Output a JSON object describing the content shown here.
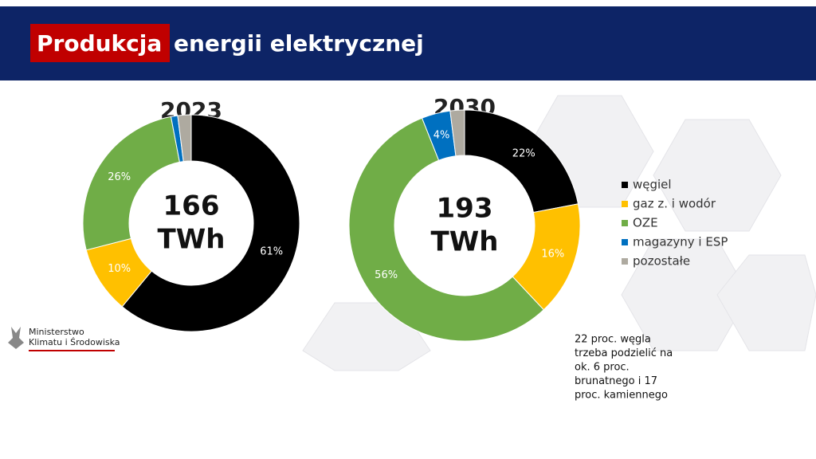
{
  "header": {
    "title_highlight": "Produkcja",
    "title_rest": "energii elektrycznej"
  },
  "legend": [
    {
      "name": "węgiel",
      "color": "#000000"
    },
    {
      "name": "gaz z. i wodór",
      "color": "#ffc000"
    },
    {
      "name": "OZE",
      "color": "#70ad47"
    },
    {
      "name": "magazyny i ESP",
      "color": "#0070c0"
    },
    {
      "name": "pozostałe",
      "color": "#aeaaa0"
    }
  ],
  "chart_data": [
    {
      "type": "donut",
      "title": "2023",
      "center_text": [
        "166",
        "TWh"
      ],
      "values": [
        61,
        10,
        26,
        1,
        2
      ],
      "value_labels": [
        "61%",
        "10%",
        "26%",
        null,
        null
      ]
    },
    {
      "type": "donut",
      "title": "2030",
      "center_text": [
        "193",
        "TWh"
      ],
      "values": [
        22,
        16,
        56,
        4,
        2
      ],
      "value_labels": [
        "22%",
        "16%",
        "56%",
        "4%",
        null
      ]
    }
  ],
  "logo": {
    "lines": [
      "Ministerstwo",
      "Klimatu i Środowiska"
    ]
  },
  "note": {
    "lines": [
      "22 proc. węgla",
      "trzeba podzielić na",
      "ok. 6 proc.",
      "brunatnego i 17",
      "proc. kamiennego"
    ]
  }
}
